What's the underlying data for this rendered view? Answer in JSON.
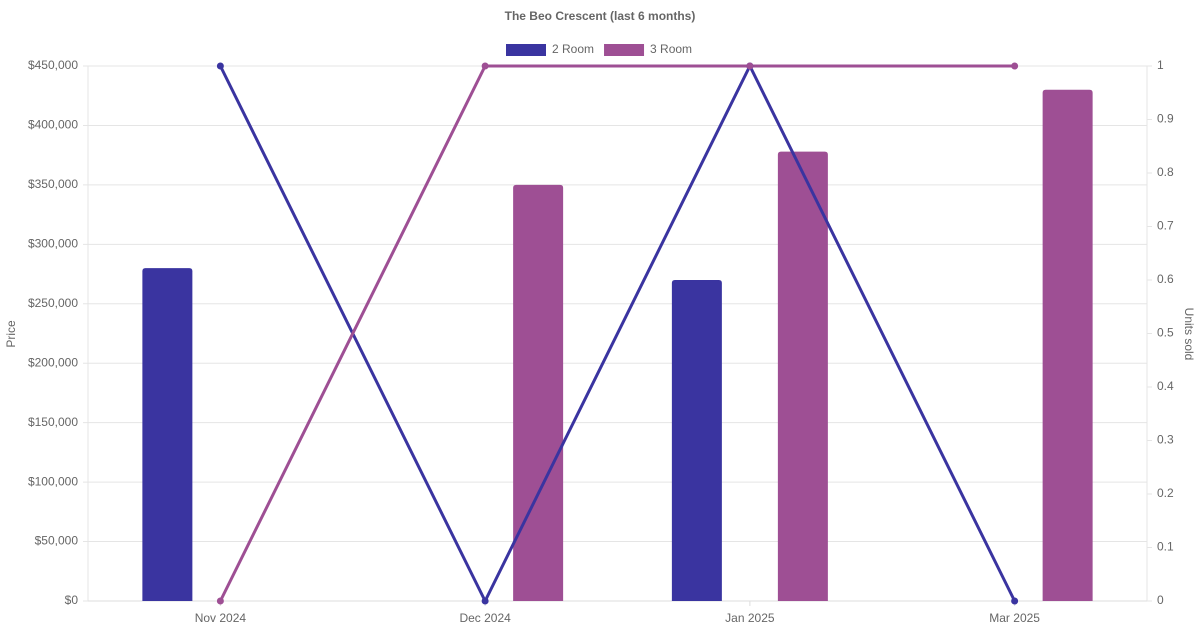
{
  "chart_data": {
    "type": "bar-line",
    "title": "The Beo Crescent (last 6 months)",
    "y_label": "Price",
    "y2_label": "Units sold",
    "categories": [
      "Nov 2024",
      "Dec 2024",
      "Jan 2025",
      "Mar 2025"
    ],
    "series": [
      {
        "name": "2 Room",
        "color": "#3a34a0",
        "values": [
          280000,
          null,
          270000,
          null
        ],
        "units": [
          1,
          0,
          1,
          0
        ]
      },
      {
        "name": "3 Room",
        "color": "#9e4f94",
        "values": [
          null,
          350000,
          378000,
          430000
        ],
        "units": [
          0,
          1,
          1,
          1
        ]
      }
    ],
    "ylim": [
      0,
      450000
    ],
    "yticks": [
      {
        "value": 0,
        "label": "$0"
      },
      {
        "value": 50000,
        "label": "$50,000"
      },
      {
        "value": 100000,
        "label": "$100,000"
      },
      {
        "value": 150000,
        "label": "$150,000"
      },
      {
        "value": 200000,
        "label": "$200,000"
      },
      {
        "value": 250000,
        "label": "$250,000"
      },
      {
        "value": 300000,
        "label": "$300,000"
      },
      {
        "value": 350000,
        "label": "$350,000"
      },
      {
        "value": 400000,
        "label": "$400,000"
      },
      {
        "value": 450000,
        "label": "$450,000"
      }
    ],
    "y2lim": [
      0,
      1
    ],
    "y2ticks": [
      0,
      0.1,
      0.2,
      0.3,
      0.4,
      0.5,
      0.6,
      0.7,
      0.8,
      0.9,
      1
    ],
    "grid": true
  }
}
